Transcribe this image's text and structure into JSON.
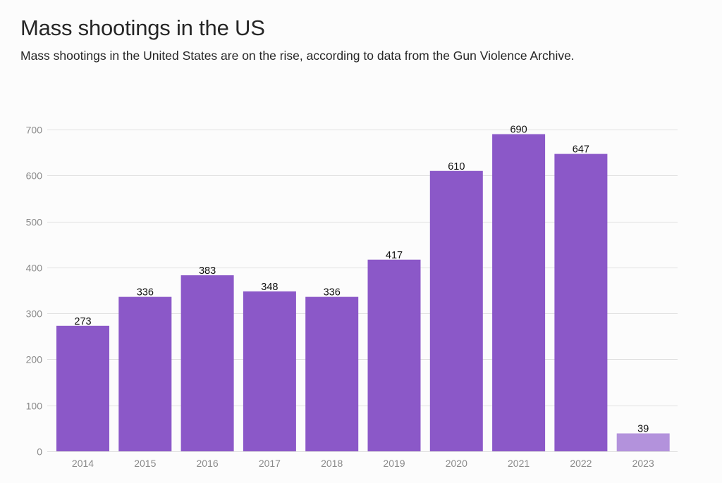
{
  "chart_data": {
    "type": "bar",
    "title": "Mass shootings in the US",
    "subtitle": "Mass shootings in the United States are on the rise, according to data from the Gun Violence Archive.",
    "xlabel": "",
    "ylabel": "",
    "categories": [
      "2014",
      "2015",
      "2016",
      "2017",
      "2018",
      "2019",
      "2020",
      "2021",
      "2022",
      "2023"
    ],
    "values": [
      273,
      336,
      383,
      348,
      336,
      417,
      610,
      690,
      647,
      39
    ],
    "data_labels": [
      "273",
      "336",
      "383",
      "348",
      "336",
      "417",
      "610",
      "690",
      "647",
      "39"
    ],
    "highlight_partial": [
      false,
      false,
      false,
      false,
      false,
      false,
      false,
      false,
      false,
      true
    ],
    "ylim": [
      0,
      700
    ],
    "yticks": [
      0,
      100,
      200,
      300,
      400,
      500,
      600,
      700
    ],
    "ytick_labels": [
      "0",
      "100",
      "200",
      "300",
      "400",
      "500",
      "600",
      "700"
    ],
    "grid": true,
    "legend": "none",
    "colors": {
      "bar": "#8b58c8",
      "bar_partial": "#b392dc",
      "grid": "#e0e0e0"
    }
  }
}
